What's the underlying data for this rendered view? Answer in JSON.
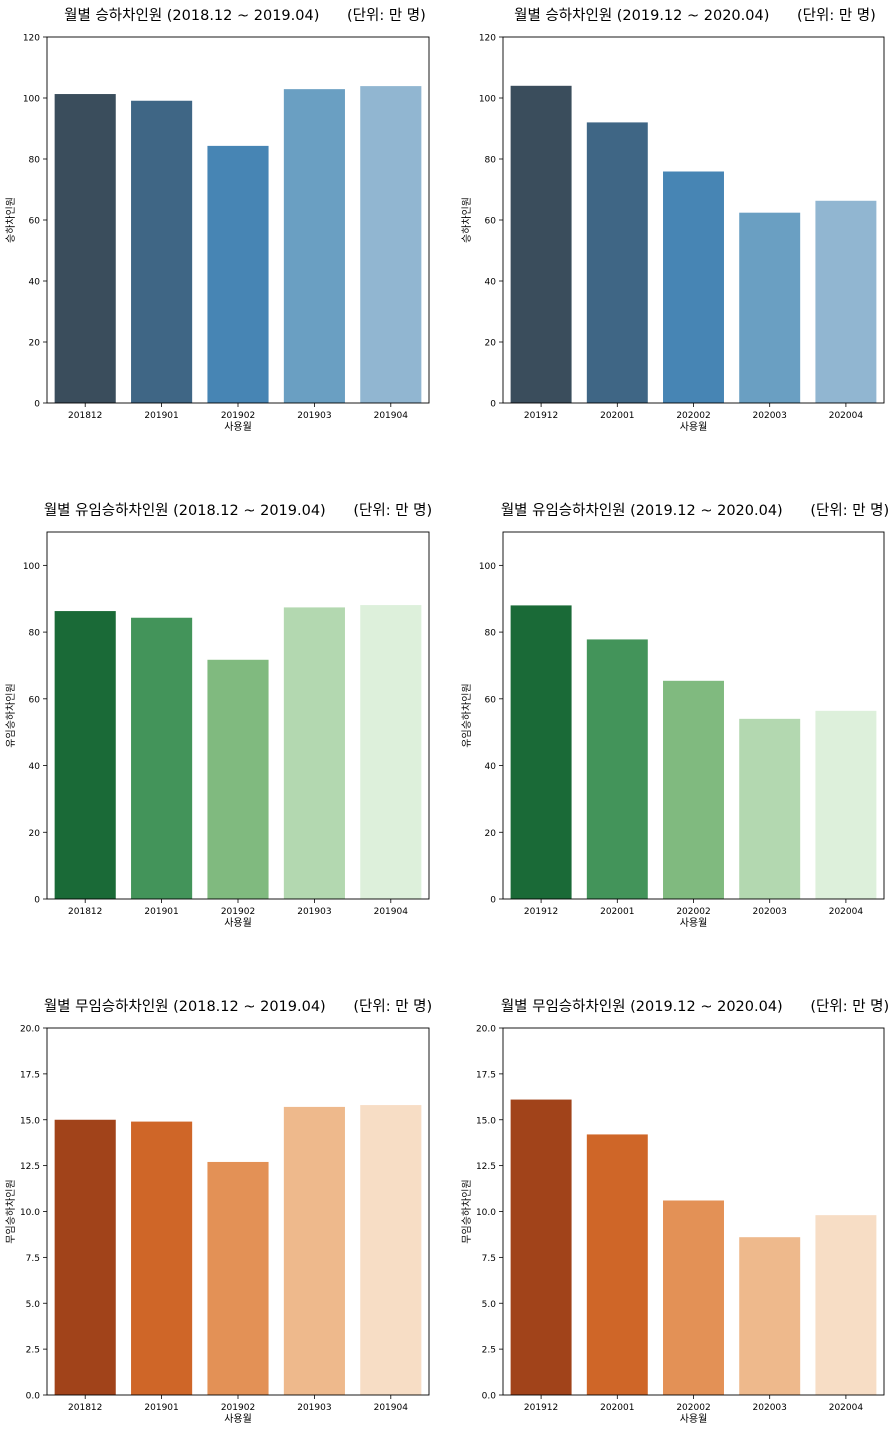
{
  "chart_data": [
    {
      "type": "bar",
      "title": "월별 승하차인원 (2018.12 ~ 2019.04)      (단위: 만 명)",
      "xlabel": "사용월",
      "ylabel": "승하차인원",
      "categories": [
        "201812",
        "201901",
        "201902",
        "201903",
        "201904"
      ],
      "values": [
        101.3,
        99.1,
        84.3,
        102.9,
        103.9
      ],
      "ylim": [
        0,
        120
      ],
      "yticks": [
        "0",
        "20",
        "40",
        "60",
        "80",
        "100",
        "120"
      ],
      "colors": [
        "#3a4d5c",
        "#3f6685",
        "#4785b4",
        "#6a9fc2",
        "#91b6d1"
      ],
      "grid": false
    },
    {
      "type": "bar",
      "title": "월별 승하차인원 (2019.12 ~ 2020.04)      (단위: 만 명)",
      "xlabel": "사용월",
      "ylabel": "승하차인원",
      "categories": [
        "201912",
        "202001",
        "202002",
        "202003",
        "202004"
      ],
      "values": [
        104.0,
        92.0,
        75.9,
        62.4,
        66.3
      ],
      "ylim": [
        0,
        120
      ],
      "yticks": [
        "0",
        "20",
        "40",
        "60",
        "80",
        "100",
        "120"
      ],
      "colors": [
        "#3a4d5c",
        "#3f6685",
        "#4785b4",
        "#6a9fc2",
        "#91b6d1"
      ],
      "grid": false
    },
    {
      "type": "bar",
      "title": "월별 유임승하차인원 (2018.12 ~ 2019.04)      (단위: 만 명)",
      "xlabel": "사용월",
      "ylabel": "유임승하차인원",
      "categories": [
        "201812",
        "201901",
        "201902",
        "201903",
        "201904"
      ],
      "values": [
        86.3,
        84.3,
        71.7,
        87.4,
        88.1
      ],
      "ylim": [
        0,
        110
      ],
      "yticks": [
        "0",
        "20",
        "40",
        "60",
        "80",
        "100"
      ],
      "colors": [
        "#1a6a37",
        "#43945a",
        "#80ba7f",
        "#b3d8b0",
        "#ddf0db"
      ],
      "grid": false
    },
    {
      "type": "bar",
      "title": "월별 유임승하차인원 (2019.12 ~ 2020.04)      (단위: 만 명)",
      "xlabel": "사용월",
      "ylabel": "유임승하차인원",
      "categories": [
        "201912",
        "202001",
        "202002",
        "202003",
        "202004"
      ],
      "values": [
        88.0,
        77.8,
        65.4,
        54.0,
        56.4
      ],
      "ylim": [
        0,
        110
      ],
      "yticks": [
        "0",
        "20",
        "40",
        "60",
        "80",
        "100"
      ],
      "colors": [
        "#1a6a37",
        "#43945a",
        "#80ba7f",
        "#b3d8b0",
        "#ddf0db"
      ],
      "grid": false
    },
    {
      "type": "bar",
      "title": "월별 무임승하차인원 (2018.12 ~ 2019.04)      (단위: 만 명)",
      "xlabel": "사용월",
      "ylabel": "무임승하차인원",
      "categories": [
        "201812",
        "201901",
        "201902",
        "201903",
        "201904"
      ],
      "values": [
        15.0,
        14.9,
        12.7,
        15.7,
        15.8
      ],
      "ylim": [
        0,
        20
      ],
      "yticks": [
        "0.0",
        "2.5",
        "5.0",
        "7.5",
        "10.0",
        "12.5",
        "15.0",
        "17.5",
        "20.0"
      ],
      "colors": [
        "#a1431a",
        "#cf6628",
        "#e39156",
        "#eeb98c",
        "#f7ddc5"
      ],
      "grid": false
    },
    {
      "type": "bar",
      "title": "월별 무임승하차인원 (2019.12 ~ 2020.04)      (단위: 만 명)",
      "xlabel": "사용월",
      "ylabel": "무임승하차인원",
      "categories": [
        "201912",
        "202001",
        "202002",
        "202003",
        "202004"
      ],
      "values": [
        16.1,
        14.2,
        10.6,
        8.6,
        9.8
      ],
      "ylim": [
        0,
        20
      ],
      "yticks": [
        "0.0",
        "2.5",
        "5.0",
        "7.5",
        "10.0",
        "12.5",
        "15.0",
        "17.5",
        "20.0"
      ],
      "colors": [
        "#a1431a",
        "#cf6628",
        "#e39156",
        "#eeb98c",
        "#f7ddc5"
      ],
      "grid": false
    }
  ]
}
